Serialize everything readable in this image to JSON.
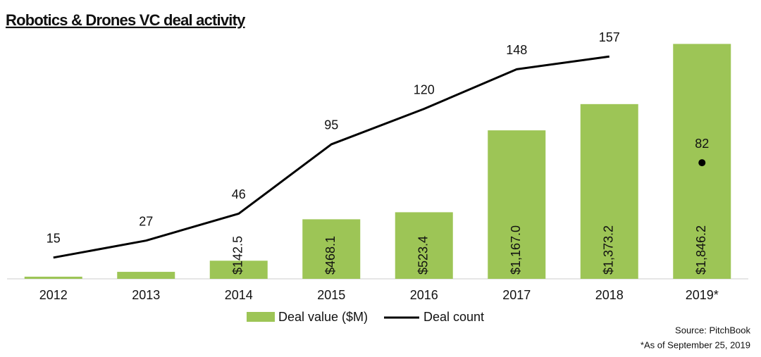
{
  "chart_data": {
    "type": "bar_line",
    "title": "Robotics & Drones VC deal activity",
    "categories": [
      "2012",
      "2013",
      "2014",
      "2015",
      "2016",
      "2017",
      "2018",
      "2019*"
    ],
    "series": [
      {
        "name": "Deal value ($M)",
        "color": "#9dc556",
        "type": "bar",
        "values": [
          17,
          55,
          142.5,
          468.1,
          523.4,
          1167.0,
          1373.2,
          1846.2
        ],
        "value_labels": [
          null,
          null,
          "$142.5",
          "$468.1",
          "$523.4",
          "$1,167.0",
          "$1,373.2",
          "$1,846.2"
        ]
      },
      {
        "name": "Deal count",
        "color": "#000000",
        "type": "line",
        "axis": "y2",
        "last_point_separate": true,
        "values": [
          15,
          27,
          46,
          95,
          120,
          148,
          157,
          82
        ]
      }
    ],
    "ylim": [
      0,
      1970
    ],
    "y2lim": [
      0,
      177
    ],
    "source": "Source: PitchBook",
    "note": "*As of September 25, 2019"
  }
}
